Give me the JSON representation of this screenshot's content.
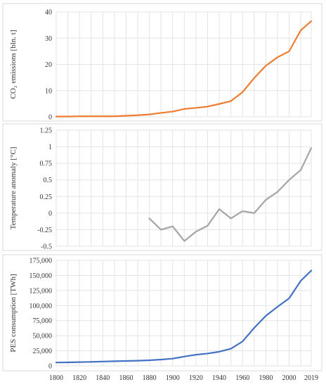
{
  "chart_data": [
    {
      "type": "line",
      "ylabel": "CO₂ emissions [bln. t]",
      "xlim": [
        1800,
        2019
      ],
      "ylim": [
        0,
        40
      ],
      "yticks": [
        "0",
        "10",
        "20",
        "30",
        "40"
      ],
      "grid": true,
      "color": "#ed7d31",
      "series": [
        {
          "x": [
            1800,
            1810,
            1820,
            1830,
            1840,
            1850,
            1860,
            1870,
            1880,
            1890,
            1900,
            1910,
            1920,
            1930,
            1940,
            1950,
            1960,
            1970,
            1980,
            1990,
            2000,
            2010,
            2019
          ],
          "values": [
            0.1,
            0.1,
            0.2,
            0.2,
            0.2,
            0.2,
            0.4,
            0.6,
            0.9,
            1.5,
            2.0,
            3.0,
            3.4,
            3.9,
            4.9,
            6.0,
            9.4,
            14.8,
            19.5,
            22.7,
            25.0,
            33.0,
            36.5
          ]
        }
      ]
    },
    {
      "type": "line",
      "ylabel": "Temperature anomaly [°C]",
      "xlim": [
        1800,
        2019
      ],
      "ylim": [
        -0.5,
        1.25
      ],
      "yticks": [
        "-0.5",
        "-0.25",
        "0",
        "0.25",
        "0.5",
        "0.75",
        "1",
        "1.25"
      ],
      "ytick_values": [
        -0.5,
        -0.25,
        0,
        0.25,
        0.5,
        0.75,
        1,
        1.25
      ],
      "grid": true,
      "color": "#a5a5a5",
      "series": [
        {
          "x": [
            1880,
            1890,
            1900,
            1910,
            1920,
            1930,
            1940,
            1950,
            1960,
            1970,
            1980,
            1990,
            2000,
            2010,
            2019
          ],
          "values": [
            -0.08,
            -0.25,
            -0.2,
            -0.42,
            -0.28,
            -0.19,
            0.06,
            -0.08,
            0.03,
            0.0,
            0.2,
            0.32,
            0.5,
            0.65,
            0.98
          ]
        }
      ]
    },
    {
      "type": "line",
      "ylabel": "PES consumption [TWh]",
      "xlabel": "",
      "xlim": [
        1800,
        2019
      ],
      "ylim": [
        0,
        175000
      ],
      "yticks": [
        "0",
        "25,000",
        "50,000",
        "75,000",
        "100,000",
        "125,000",
        "150,000",
        "175,000"
      ],
      "xticks": [
        "1800",
        "1820",
        "1840",
        "1860",
        "1880",
        "1900",
        "1920",
        "1940",
        "1960",
        "1980",
        "2000",
        "2019"
      ],
      "xtick_values": [
        1800,
        1820,
        1840,
        1860,
        1880,
        1900,
        1920,
        1940,
        1960,
        1980,
        2000,
        2019
      ],
      "grid": true,
      "color": "#4472c4",
      "series": [
        {
          "x": [
            1800,
            1810,
            1820,
            1830,
            1840,
            1850,
            1860,
            1870,
            1880,
            1890,
            1900,
            1910,
            1920,
            1930,
            1940,
            1950,
            1960,
            1970,
            1980,
            1990,
            2000,
            2010,
            2019
          ],
          "values": [
            5600,
            5800,
            6300,
            6700,
            7200,
            7700,
            8200,
            8600,
            9300,
            10500,
            12000,
            15500,
            18500,
            20500,
            23500,
            28500,
            40500,
            63000,
            83000,
            98000,
            112000,
            141000,
            158000
          ]
        }
      ]
    }
  ]
}
